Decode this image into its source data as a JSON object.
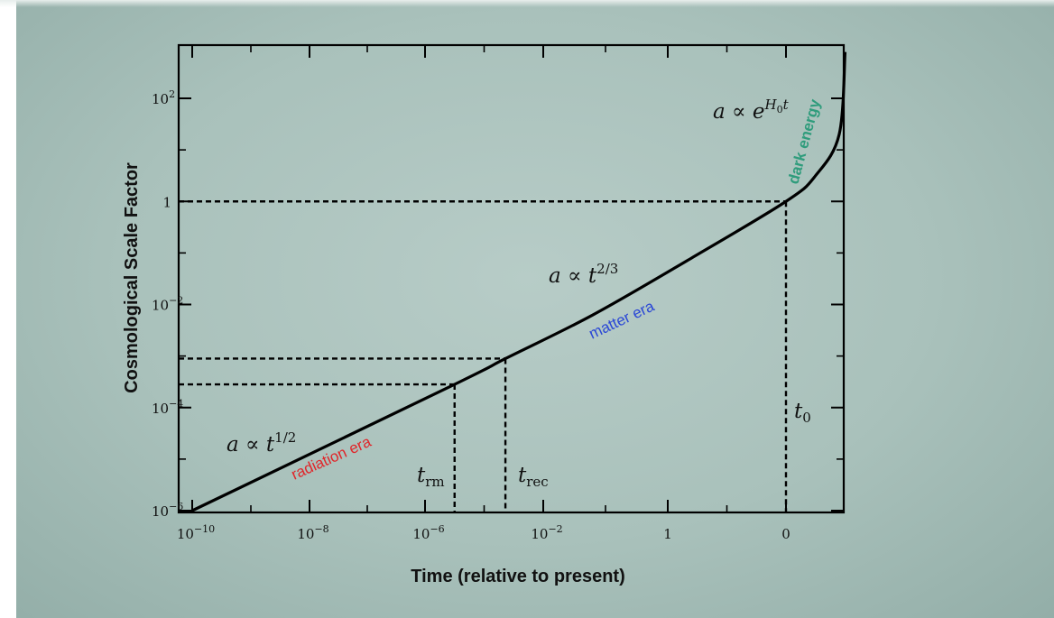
{
  "chart_data": {
    "type": "line",
    "title": "",
    "xlabel": "Time (relative to present)",
    "ylabel": "Cosmological Scale Factor",
    "x_tick_labels": [
      {
        "base": "10",
        "exp": "−10"
      },
      {
        "base": "10",
        "exp": "−8"
      },
      {
        "base": "10",
        "exp": "−6"
      },
      {
        "base": "10",
        "exp": "−2"
      },
      {
        "base": "1",
        "exp": ""
      },
      {
        "base": "0",
        "exp": ""
      }
    ],
    "y_tick_labels": [
      {
        "base": "10",
        "exp": "−6"
      },
      {
        "base": "10",
        "exp": "−4"
      },
      {
        "base": "10",
        "exp": "−2"
      },
      {
        "base": "1",
        "exp": ""
      },
      {
        "base": "10",
        "exp": "2"
      }
    ],
    "series": [
      {
        "values_note": "",
        "points": [
          {
            "x_tick": 0,
            "y_log10": -6.0
          },
          {
            "x_tick": 2.25,
            "y_log10": -3.55
          },
          {
            "x_tick": 2.68,
            "y_log10": -3.05
          },
          {
            "x_tick": 3.4,
            "y_log10": -2.2
          },
          {
            "x_tick": 4.2,
            "y_log10": -1.1
          },
          {
            "x_tick": 5.0,
            "y_log10": 0.0
          },
          {
            "x_tick": 5.25,
            "y_log10": 0.5
          },
          {
            "x_tick": 5.45,
            "y_log10": 1.3
          },
          {
            "x_tick": 5.5,
            "y_log10": 2.9
          }
        ]
      }
    ],
    "markers": {
      "t_rm": {
        "label_base": "t",
        "label_sub": "rm",
        "x_tick": 2.25,
        "y_log10": -3.55
      },
      "t_rec": {
        "label_base": "t",
        "label_sub": "rec",
        "x_tick": 2.68,
        "y_log10": -3.05
      },
      "t_0": {
        "label_base": "t",
        "label_sub": "0",
        "x_tick": 5.0,
        "y_log10": 0.0
      }
    },
    "annotations": {
      "radiation_formula": {
        "base": "a ∝ t",
        "exp": "1/2"
      },
      "matter_formula": {
        "base": "a ∝ t",
        "exp": "2/3"
      },
      "dark_formula": {
        "base": "a ∝ e",
        "exp": "H",
        "exp_sub": "0",
        "exp_tail": "t"
      },
      "radiation_era": "radiation era",
      "matter_era": "matter era",
      "dark_energy": "dark energy"
    },
    "colors": {
      "curve": "#000000",
      "radiation_era": "#e0262a",
      "matter_era": "#2a47d6",
      "dark_energy": "#2f9c7c"
    },
    "grid": false,
    "legend": "none"
  }
}
